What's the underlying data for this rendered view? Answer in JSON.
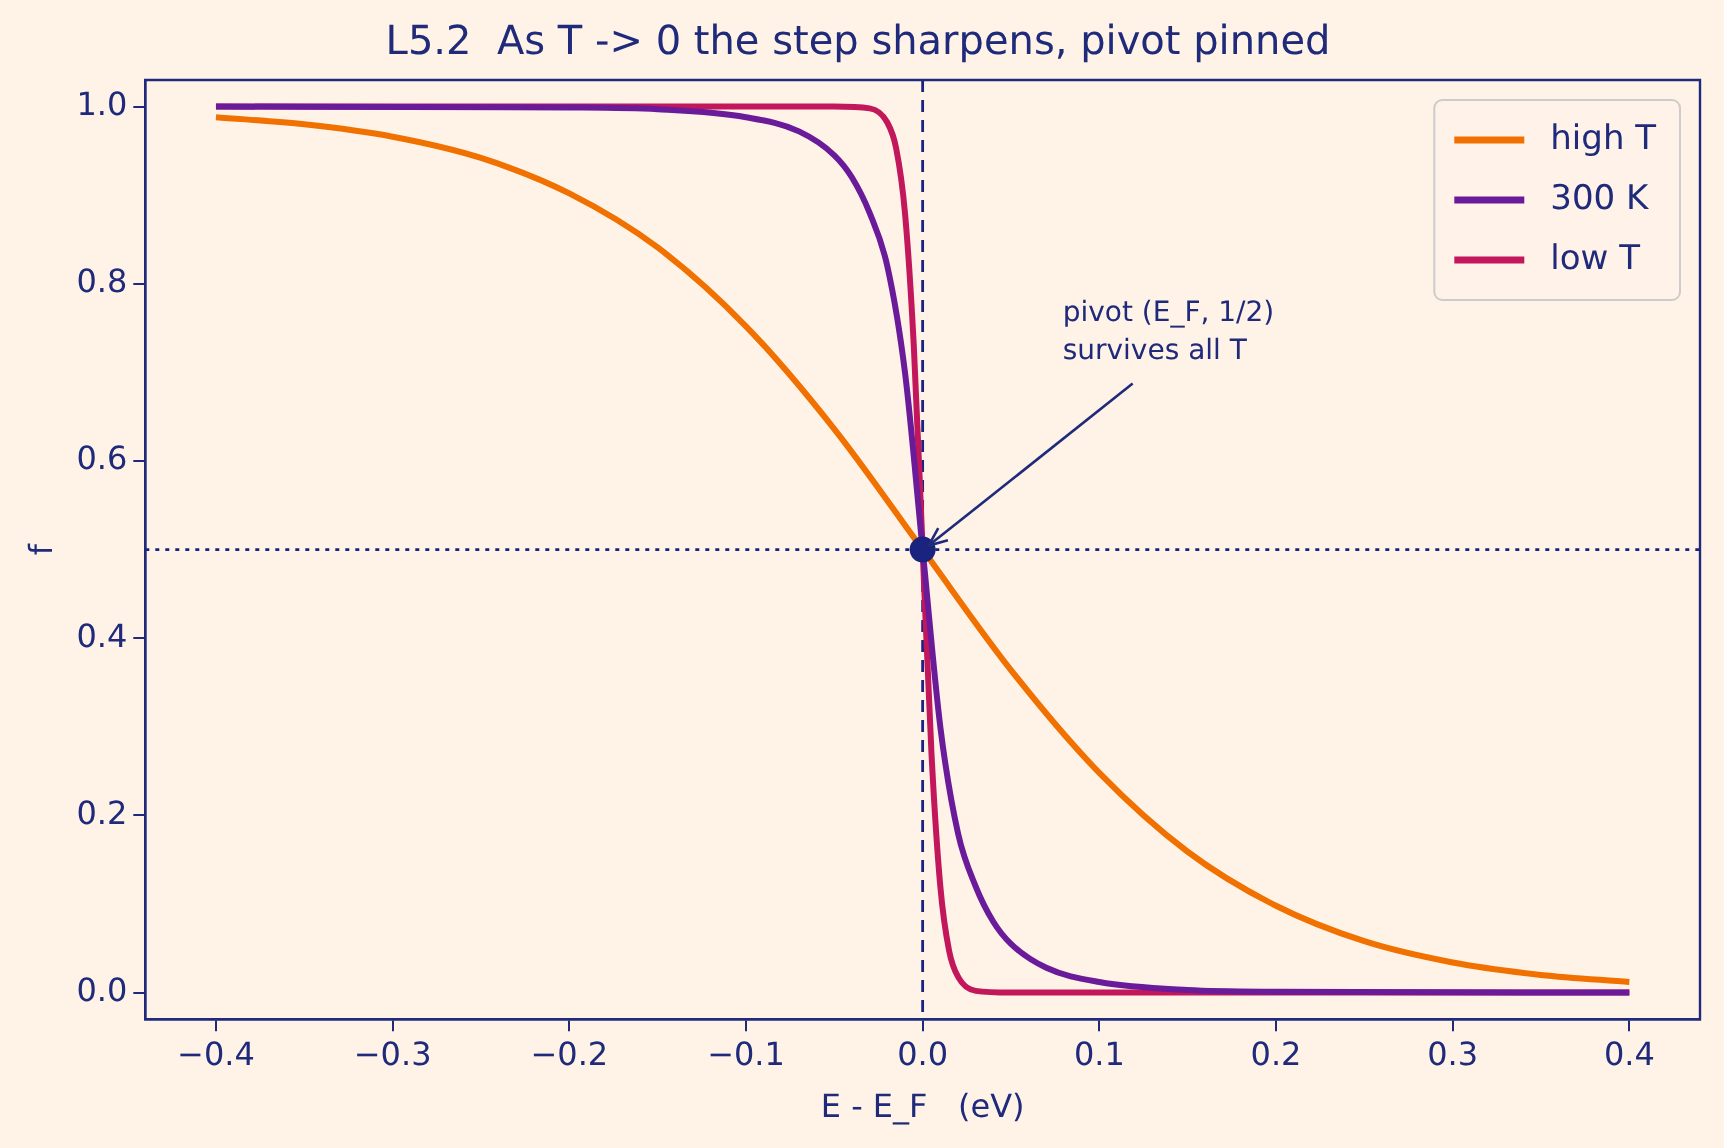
{
  "chart_data": {
    "type": "line",
    "title": "L5.2  As T -> 0 the step sharpens, pivot pinned",
    "xlabel": "E - E_F   (eV)",
    "ylabel": "f",
    "series": [
      {
        "name": "high T",
        "color": "#f07000",
        "x": [
          -0.4,
          -0.35,
          -0.3,
          -0.25,
          -0.2,
          -0.15,
          -0.1,
          -0.05,
          0,
          0.05,
          0.1,
          0.15,
          0.2,
          0.25,
          0.3,
          0.35,
          0.4
        ],
        "values": [
          0.988,
          0.98,
          0.966,
          0.942,
          0.902,
          0.841,
          0.752,
          0.636,
          0.5,
          0.364,
          0.248,
          0.159,
          0.098,
          0.058,
          0.034,
          0.02,
          0.012
        ]
      },
      {
        "name": "300 K",
        "color": "#6a1b9a",
        "x": [
          -0.4,
          -0.2,
          -0.15,
          -0.1,
          -0.07,
          -0.05,
          -0.04,
          -0.03,
          -0.02,
          -0.01,
          0,
          0.01,
          0.02,
          0.03,
          0.04,
          0.05,
          0.07,
          0.1,
          0.15,
          0.2,
          0.4
        ],
        "values": [
          1,
          0.999,
          0.997,
          0.988,
          0.972,
          0.945,
          0.92,
          0.88,
          0.82,
          0.7,
          0.5,
          0.3,
          0.18,
          0.12,
          0.08,
          0.055,
          0.028,
          0.012,
          0.003,
          0.001,
          0
        ]
      },
      {
        "name": "low T",
        "color": "#c2185b",
        "x": [
          -0.4,
          -0.05,
          -0.03,
          -0.02,
          -0.015,
          -0.01,
          -0.005,
          0,
          0.005,
          0.01,
          0.015,
          0.02,
          0.03,
          0.05,
          0.4
        ],
        "values": [
          1,
          1,
          0.998,
          0.982,
          0.953,
          0.88,
          0.73,
          0.5,
          0.27,
          0.12,
          0.047,
          0.018,
          0.002,
          0,
          0
        ]
      },
      {
        "type": "scatter",
        "marker": "circle",
        "color": "#1a237e",
        "x": [
          0
        ],
        "values": [
          0.5
        ]
      }
    ],
    "xlim": [
      -0.44,
      0.44
    ],
    "ylim": [
      -0.03,
      1.03
    ],
    "xticks": [
      {
        "value": -0.4,
        "label": "−0.4"
      },
      {
        "value": -0.3,
        "label": "−0.3"
      },
      {
        "value": -0.2,
        "label": "−0.2"
      },
      {
        "value": -0.1,
        "label": "−0.1"
      },
      {
        "value": 0,
        "label": "0.0"
      },
      {
        "value": 0.1,
        "label": "0.1"
      },
      {
        "value": 0.2,
        "label": "0.2"
      },
      {
        "value": 0.3,
        "label": "0.3"
      },
      {
        "value": 0.4,
        "label": "0.4"
      }
    ],
    "yticks": [
      {
        "value": 0,
        "label": "0.0"
      },
      {
        "value": 0.2,
        "label": "0.2"
      },
      {
        "value": 0.4,
        "label": "0.4"
      },
      {
        "value": 0.6,
        "label": "0.6"
      },
      {
        "value": 0.8,
        "label": "0.8"
      },
      {
        "value": 1,
        "label": "1.0"
      }
    ],
    "ref_lines": [
      {
        "axis": "x",
        "value": 0,
        "color": "#1a237e",
        "line_style": "dashed"
      },
      {
        "axis": "y",
        "value": 0.5,
        "color": "#1a237e",
        "line_style": "dotted"
      }
    ],
    "annotations": [
      {
        "text": "pivot (E_F, 1/2)\nsurvives all T",
        "x": 0,
        "y": 0.5
      }
    ],
    "legend": "top right",
    "grid": false,
    "line_style": "solid"
  }
}
